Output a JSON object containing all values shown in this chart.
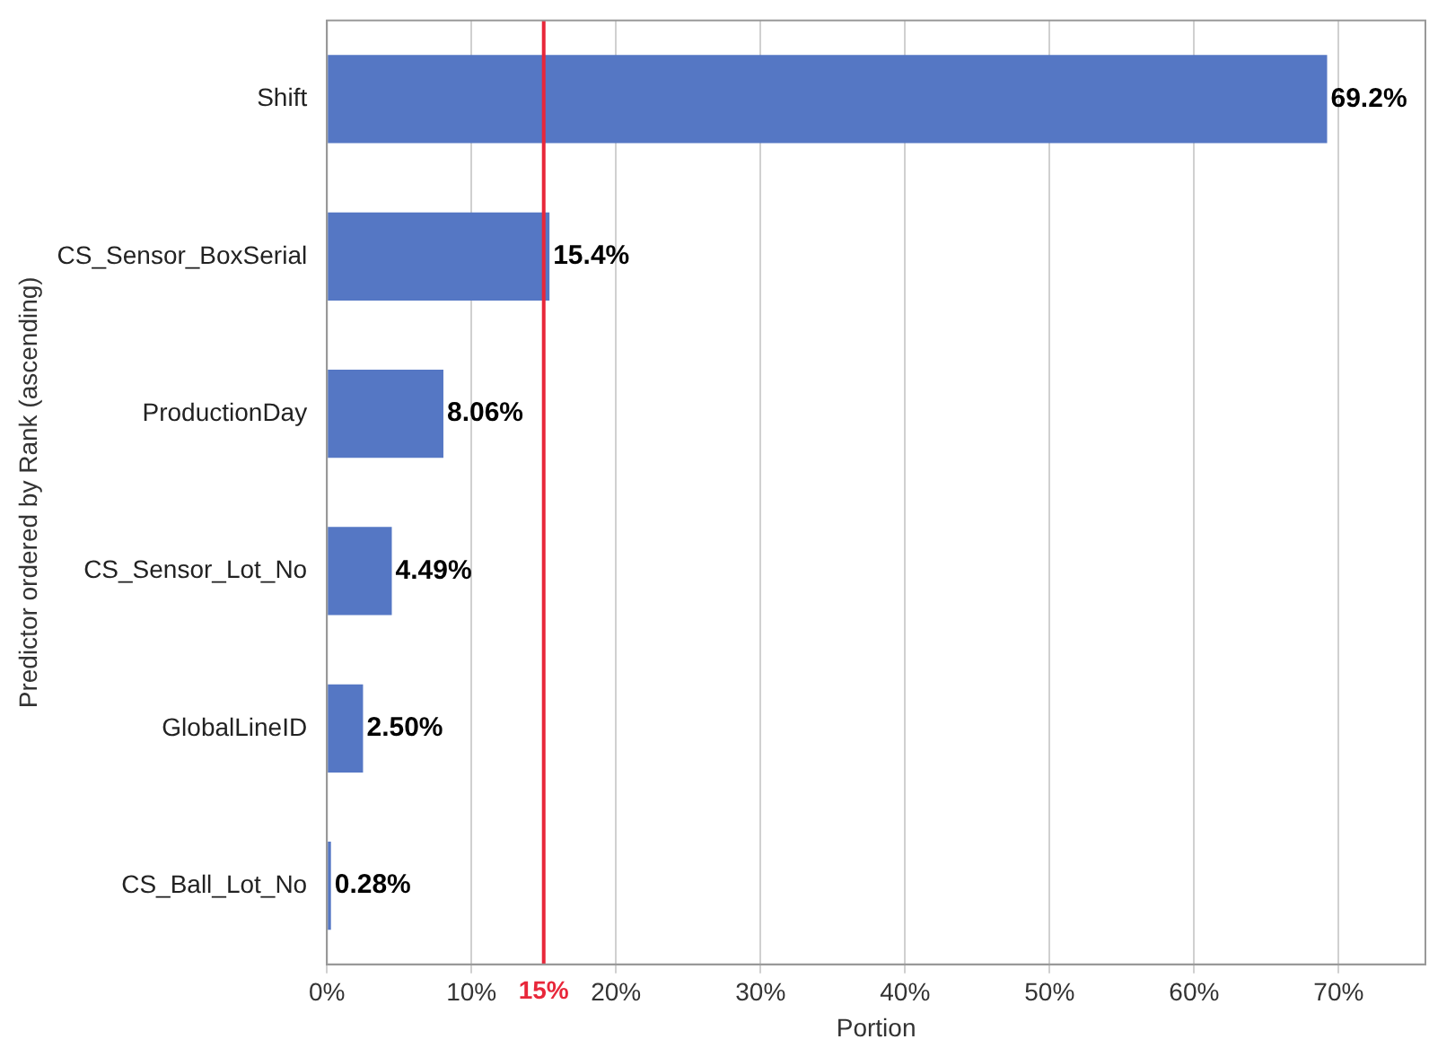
{
  "chart_data": {
    "type": "bar",
    "orientation": "horizontal",
    "xlabel": "Portion",
    "ylabel": "Predictor ordered by Rank (ascending)",
    "categories": [
      "Shift",
      "CS_Sensor_BoxSerial",
      "ProductionDay",
      "CS_Sensor_Lot_No",
      "GlobalLineID",
      "CS_Ball_Lot_No"
    ],
    "values": [
      69.2,
      15.4,
      8.06,
      4.49,
      2.5,
      0.28
    ],
    "value_labels": [
      "69.2%",
      "15.4%",
      "8.06%",
      "4.49%",
      "2.50%",
      "0.28%"
    ],
    "color": "#5577c4",
    "xlim": [
      0,
      76
    ],
    "xticks": [
      {
        "value": 0,
        "label": "0%"
      },
      {
        "value": 10,
        "label": "10%"
      },
      {
        "value": 20,
        "label": "20%"
      },
      {
        "value": 30,
        "label": "30%"
      },
      {
        "value": 40,
        "label": "40%"
      },
      {
        "value": 50,
        "label": "50%"
      },
      {
        "value": 60,
        "label": "60%"
      },
      {
        "value": 70,
        "label": "70%"
      }
    ],
    "ref_lines": [
      {
        "axis": "x",
        "value": 15,
        "label": "15%",
        "color": "#e8273a"
      }
    ],
    "grid": "x",
    "legend": false
  }
}
